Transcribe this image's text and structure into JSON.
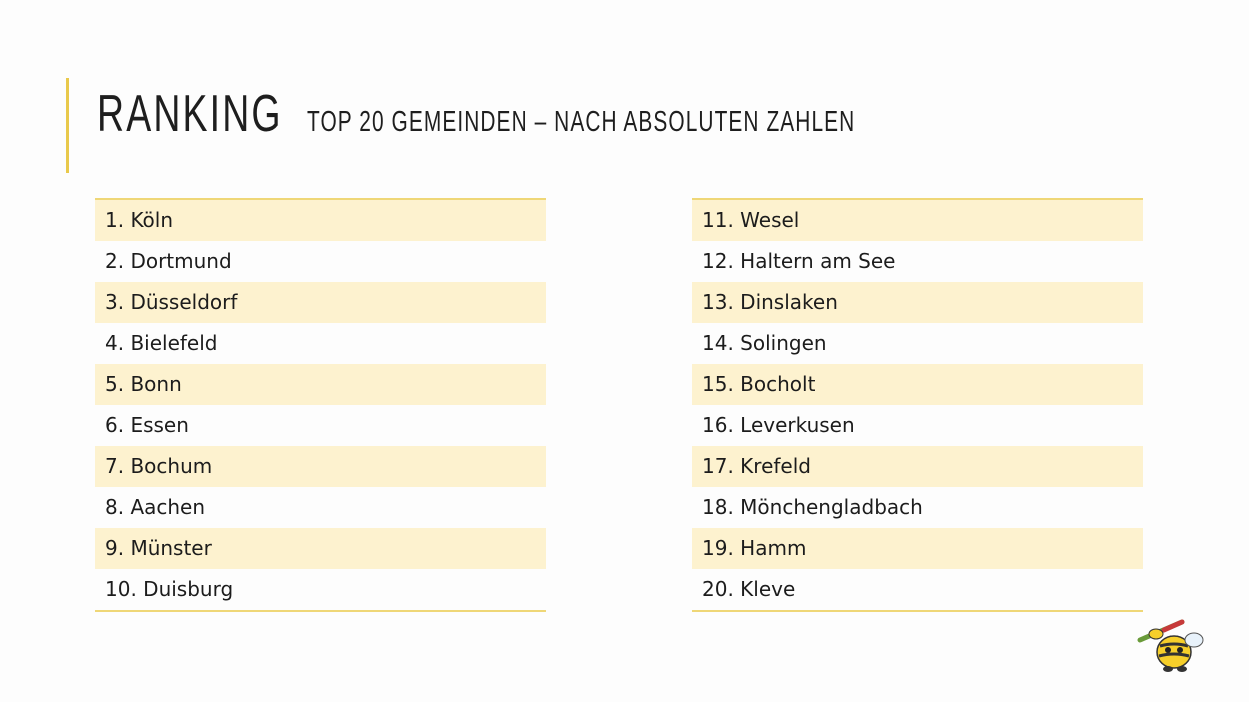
{
  "title": "RANKING",
  "subtitle": "TOP 20 GEMEINDEN – NACH ABSOLUTEN ZAHLEN",
  "lists": [
    [
      "1. Köln",
      "2. Dortmund",
      "3. Düsseldorf",
      "4. Bielefeld",
      "5. Bonn",
      "6. Essen",
      "7. Bochum",
      "8. Aachen",
      "9. Münster",
      "10. Duisburg"
    ],
    [
      "11. Wesel",
      "12. Haltern am See",
      "13. Dinslaken",
      "14. Solingen",
      "15. Bocholt",
      "16. Leverkusen",
      "17. Krefeld",
      "18. Mönchengladbach",
      "19. Hamm",
      "20. Kleve"
    ]
  ]
}
